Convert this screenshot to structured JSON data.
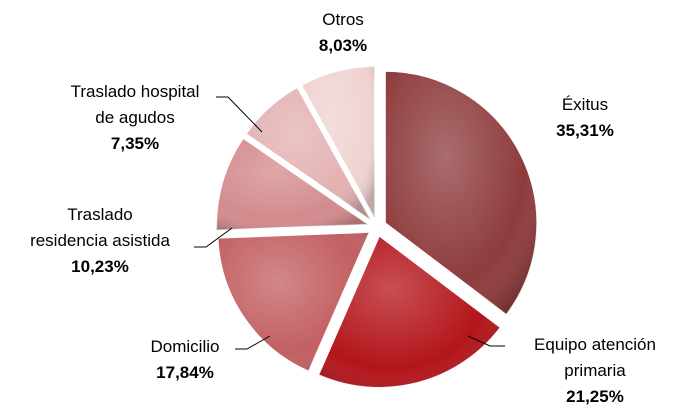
{
  "chart_data": {
    "type": "pie",
    "categories": [
      "Éxitus",
      "Equipo atención\nprimaria",
      "Domicilio",
      "Traslado\nresidencia asistida",
      "Traslado hospital\nde agudos",
      "Otros"
    ],
    "values": [
      35.31,
      21.25,
      17.84,
      10.23,
      7.35,
      8.03
    ],
    "value_labels": [
      "35,31%",
      "21,25%",
      "17,84%",
      "10,23%",
      "7,35%",
      "8,03%"
    ],
    "colors": [
      "#8e3b3d",
      "#b3151a",
      "#c25f62",
      "#d38b8d",
      "#e3b1b2",
      "#f0d2d2"
    ]
  }
}
